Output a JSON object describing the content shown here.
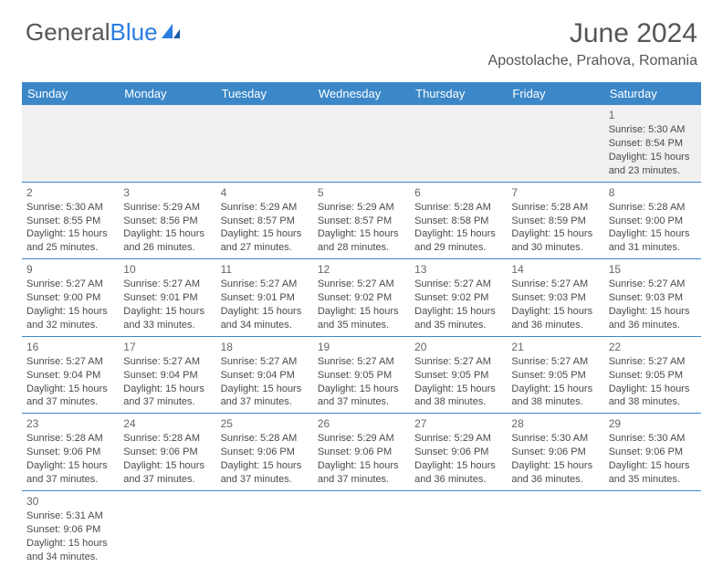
{
  "brand": {
    "part1": "General",
    "part2": "Blue"
  },
  "title": "June 2024",
  "location": "Apostolache, Prahova, Romania",
  "day_headers": [
    "Sunday",
    "Monday",
    "Tuesday",
    "Wednesday",
    "Thursday",
    "Friday",
    "Saturday"
  ],
  "colors": {
    "header_bg": "#3b87c8",
    "header_fg": "#ffffff",
    "shade_bg": "#f0f0f0",
    "border": "#3b87c8",
    "text": "#4a4a4a",
    "title": "#555555"
  },
  "rows": [
    {
      "shade": true,
      "cells": [
        null,
        null,
        null,
        null,
        null,
        null,
        {
          "n": "1",
          "sunrise": "Sunrise: 5:30 AM",
          "sunset": "Sunset: 8:54 PM",
          "dl1": "Daylight: 15 hours",
          "dl2": "and 23 minutes."
        }
      ]
    },
    {
      "shade": false,
      "cells": [
        {
          "n": "2",
          "sunrise": "Sunrise: 5:30 AM",
          "sunset": "Sunset: 8:55 PM",
          "dl1": "Daylight: 15 hours",
          "dl2": "and 25 minutes."
        },
        {
          "n": "3",
          "sunrise": "Sunrise: 5:29 AM",
          "sunset": "Sunset: 8:56 PM",
          "dl1": "Daylight: 15 hours",
          "dl2": "and 26 minutes."
        },
        {
          "n": "4",
          "sunrise": "Sunrise: 5:29 AM",
          "sunset": "Sunset: 8:57 PM",
          "dl1": "Daylight: 15 hours",
          "dl2": "and 27 minutes."
        },
        {
          "n": "5",
          "sunrise": "Sunrise: 5:29 AM",
          "sunset": "Sunset: 8:57 PM",
          "dl1": "Daylight: 15 hours",
          "dl2": "and 28 minutes."
        },
        {
          "n": "6",
          "sunrise": "Sunrise: 5:28 AM",
          "sunset": "Sunset: 8:58 PM",
          "dl1": "Daylight: 15 hours",
          "dl2": "and 29 minutes."
        },
        {
          "n": "7",
          "sunrise": "Sunrise: 5:28 AM",
          "sunset": "Sunset: 8:59 PM",
          "dl1": "Daylight: 15 hours",
          "dl2": "and 30 minutes."
        },
        {
          "n": "8",
          "sunrise": "Sunrise: 5:28 AM",
          "sunset": "Sunset: 9:00 PM",
          "dl1": "Daylight: 15 hours",
          "dl2": "and 31 minutes."
        }
      ]
    },
    {
      "shade": false,
      "cells": [
        {
          "n": "9",
          "sunrise": "Sunrise: 5:27 AM",
          "sunset": "Sunset: 9:00 PM",
          "dl1": "Daylight: 15 hours",
          "dl2": "and 32 minutes."
        },
        {
          "n": "10",
          "sunrise": "Sunrise: 5:27 AM",
          "sunset": "Sunset: 9:01 PM",
          "dl1": "Daylight: 15 hours",
          "dl2": "and 33 minutes."
        },
        {
          "n": "11",
          "sunrise": "Sunrise: 5:27 AM",
          "sunset": "Sunset: 9:01 PM",
          "dl1": "Daylight: 15 hours",
          "dl2": "and 34 minutes."
        },
        {
          "n": "12",
          "sunrise": "Sunrise: 5:27 AM",
          "sunset": "Sunset: 9:02 PM",
          "dl1": "Daylight: 15 hours",
          "dl2": "and 35 minutes."
        },
        {
          "n": "13",
          "sunrise": "Sunrise: 5:27 AM",
          "sunset": "Sunset: 9:02 PM",
          "dl1": "Daylight: 15 hours",
          "dl2": "and 35 minutes."
        },
        {
          "n": "14",
          "sunrise": "Sunrise: 5:27 AM",
          "sunset": "Sunset: 9:03 PM",
          "dl1": "Daylight: 15 hours",
          "dl2": "and 36 minutes."
        },
        {
          "n": "15",
          "sunrise": "Sunrise: 5:27 AM",
          "sunset": "Sunset: 9:03 PM",
          "dl1": "Daylight: 15 hours",
          "dl2": "and 36 minutes."
        }
      ]
    },
    {
      "shade": false,
      "cells": [
        {
          "n": "16",
          "sunrise": "Sunrise: 5:27 AM",
          "sunset": "Sunset: 9:04 PM",
          "dl1": "Daylight: 15 hours",
          "dl2": "and 37 minutes."
        },
        {
          "n": "17",
          "sunrise": "Sunrise: 5:27 AM",
          "sunset": "Sunset: 9:04 PM",
          "dl1": "Daylight: 15 hours",
          "dl2": "and 37 minutes."
        },
        {
          "n": "18",
          "sunrise": "Sunrise: 5:27 AM",
          "sunset": "Sunset: 9:04 PM",
          "dl1": "Daylight: 15 hours",
          "dl2": "and 37 minutes."
        },
        {
          "n": "19",
          "sunrise": "Sunrise: 5:27 AM",
          "sunset": "Sunset: 9:05 PM",
          "dl1": "Daylight: 15 hours",
          "dl2": "and 37 minutes."
        },
        {
          "n": "20",
          "sunrise": "Sunrise: 5:27 AM",
          "sunset": "Sunset: 9:05 PM",
          "dl1": "Daylight: 15 hours",
          "dl2": "and 38 minutes."
        },
        {
          "n": "21",
          "sunrise": "Sunrise: 5:27 AM",
          "sunset": "Sunset: 9:05 PM",
          "dl1": "Daylight: 15 hours",
          "dl2": "and 38 minutes."
        },
        {
          "n": "22",
          "sunrise": "Sunrise: 5:27 AM",
          "sunset": "Sunset: 9:05 PM",
          "dl1": "Daylight: 15 hours",
          "dl2": "and 38 minutes."
        }
      ]
    },
    {
      "shade": false,
      "cells": [
        {
          "n": "23",
          "sunrise": "Sunrise: 5:28 AM",
          "sunset": "Sunset: 9:06 PM",
          "dl1": "Daylight: 15 hours",
          "dl2": "and 37 minutes."
        },
        {
          "n": "24",
          "sunrise": "Sunrise: 5:28 AM",
          "sunset": "Sunset: 9:06 PM",
          "dl1": "Daylight: 15 hours",
          "dl2": "and 37 minutes."
        },
        {
          "n": "25",
          "sunrise": "Sunrise: 5:28 AM",
          "sunset": "Sunset: 9:06 PM",
          "dl1": "Daylight: 15 hours",
          "dl2": "and 37 minutes."
        },
        {
          "n": "26",
          "sunrise": "Sunrise: 5:29 AM",
          "sunset": "Sunset: 9:06 PM",
          "dl1": "Daylight: 15 hours",
          "dl2": "and 37 minutes."
        },
        {
          "n": "27",
          "sunrise": "Sunrise: 5:29 AM",
          "sunset": "Sunset: 9:06 PM",
          "dl1": "Daylight: 15 hours",
          "dl2": "and 36 minutes."
        },
        {
          "n": "28",
          "sunrise": "Sunrise: 5:30 AM",
          "sunset": "Sunset: 9:06 PM",
          "dl1": "Daylight: 15 hours",
          "dl2": "and 36 minutes."
        },
        {
          "n": "29",
          "sunrise": "Sunrise: 5:30 AM",
          "sunset": "Sunset: 9:06 PM",
          "dl1": "Daylight: 15 hours",
          "dl2": "and 35 minutes."
        }
      ]
    },
    {
      "shade": false,
      "last": true,
      "cells": [
        {
          "n": "30",
          "sunrise": "Sunrise: 5:31 AM",
          "sunset": "Sunset: 9:06 PM",
          "dl1": "Daylight: 15 hours",
          "dl2": "and 34 minutes."
        },
        null,
        null,
        null,
        null,
        null,
        null
      ]
    }
  ]
}
